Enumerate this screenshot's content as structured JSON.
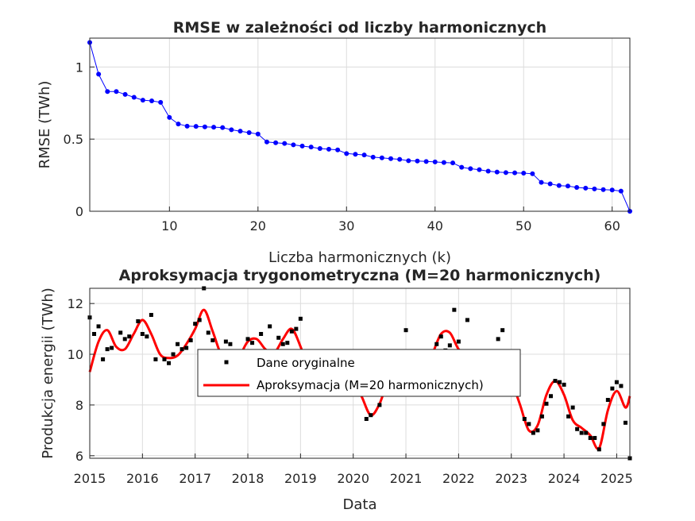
{
  "chart_data": [
    {
      "type": "line",
      "title": "RMSE w zależności od liczby harmonicznych",
      "xlabel": "Liczba harmonicznych (k)",
      "ylabel": "RMSE (TWh)",
      "xlim": [
        1,
        62
      ],
      "ylim": [
        0,
        1.2
      ],
      "xticks": [
        "10",
        "20",
        "30",
        "40",
        "50",
        "60"
      ],
      "yticks": [
        "0",
        "0.5",
        "1"
      ],
      "grid": true,
      "series": [
        {
          "color": "#0000ff",
          "marker": "circle",
          "x": [
            1,
            2,
            3,
            4,
            5,
            6,
            7,
            8,
            9,
            10,
            11,
            12,
            13,
            14,
            15,
            16,
            17,
            18,
            19,
            20,
            21,
            22,
            23,
            24,
            25,
            26,
            27,
            28,
            29,
            30,
            31,
            32,
            33,
            34,
            35,
            36,
            37,
            38,
            39,
            40,
            41,
            42,
            43,
            44,
            45,
            46,
            47,
            48,
            49,
            50,
            51,
            52,
            53,
            54,
            55,
            56,
            57,
            58,
            59,
            60,
            61,
            62
          ],
          "y": [
            1.17,
            0.95,
            0.83,
            0.83,
            0.81,
            0.79,
            0.77,
            0.765,
            0.755,
            0.65,
            0.605,
            0.59,
            0.588,
            0.585,
            0.583,
            0.58,
            0.565,
            0.555,
            0.545,
            0.535,
            0.48,
            0.475,
            0.47,
            0.46,
            0.452,
            0.445,
            0.435,
            0.43,
            0.425,
            0.4,
            0.395,
            0.39,
            0.375,
            0.37,
            0.365,
            0.36,
            0.35,
            0.348,
            0.345,
            0.342,
            0.338,
            0.335,
            0.305,
            0.295,
            0.288,
            0.278,
            0.272,
            0.268,
            0.266,
            0.264,
            0.26,
            0.2,
            0.19,
            0.178,
            0.175,
            0.165,
            0.16,
            0.155,
            0.15,
            0.147,
            0.14,
            0
          ]
        }
      ]
    },
    {
      "type": "line",
      "title": "Aproksymacja trygonometryczna (M=20 harmonicznych)",
      "xlabel": "Data",
      "ylabel": "Produkcja energii (TWh)",
      "xlim": [
        "2015-01",
        "2025-04"
      ],
      "ylim": [
        5.9,
        12.6
      ],
      "xticks": [
        "2015",
        "2016",
        "2017",
        "2018",
        "2019",
        "2020",
        "2021",
        "2022",
        "2023",
        "2024",
        "2025"
      ],
      "yticks": [
        "6",
        "8",
        "10",
        "12"
      ],
      "grid": true,
      "legend": {
        "position": "center",
        "entries": [
          "Dane oryginalne",
          "Aproksymacja (M=20 harmonicznych)"
        ]
      },
      "series": [
        {
          "name": "Dane oryginalne",
          "kind": "scatter",
          "color": "#000000",
          "marker": "square",
          "points": [
            [
              "2015-01",
              11.45
            ],
            [
              "2015-02",
              10.8
            ],
            [
              "2015-03",
              11.1
            ],
            [
              "2015-04",
              9.8
            ],
            [
              "2015-05",
              10.2
            ],
            [
              "2015-06",
              10.25
            ],
            [
              "2015-08",
              10.85
            ],
            [
              "2015-09",
              10.6
            ],
            [
              "2015-10",
              10.7
            ],
            [
              "2015-12",
              11.3
            ],
            [
              "2016-01",
              10.8
            ],
            [
              "2016-02",
              10.7
            ],
            [
              "2016-03",
              11.55
            ],
            [
              "2016-04",
              9.8
            ],
            [
              "2016-06",
              9.8
            ],
            [
              "2016-07",
              9.65
            ],
            [
              "2016-08",
              10.0
            ],
            [
              "2016-09",
              10.4
            ],
            [
              "2016-10",
              10.2
            ],
            [
              "2016-11",
              10.25
            ],
            [
              "2016-12",
              10.55
            ],
            [
              "2017-01",
              11.2
            ],
            [
              "2017-02",
              11.35
            ],
            [
              "2017-03",
              12.6
            ],
            [
              "2017-04",
              10.85
            ],
            [
              "2017-05",
              10.55
            ],
            [
              "2017-08",
              10.5
            ],
            [
              "2017-09",
              10.4
            ],
            [
              "2018-01",
              10.6
            ],
            [
              "2018-02",
              10.45
            ],
            [
              "2018-04",
              10.8
            ],
            [
              "2018-06",
              11.1
            ],
            [
              "2018-08",
              10.65
            ],
            [
              "2018-09",
              10.4
            ],
            [
              "2018-10",
              10.45
            ],
            [
              "2018-11",
              10.9
            ],
            [
              "2018-12",
              11.0
            ],
            [
              "2019-01",
              11.4
            ],
            [
              "2020-04",
              7.45
            ],
            [
              "2020-05",
              7.6
            ],
            [
              "2020-07",
              8.0
            ],
            [
              "2021-01",
              10.95
            ],
            [
              "2021-08",
              10.4
            ],
            [
              "2021-09",
              10.7
            ],
            [
              "2021-10",
              10.15
            ],
            [
              "2021-11",
              10.35
            ],
            [
              "2021-12",
              11.75
            ],
            [
              "2022-01",
              10.5
            ],
            [
              "2022-03",
              11.35
            ],
            [
              "2022-10",
              10.6
            ],
            [
              "2022-11",
              10.95
            ],
            [
              "2023-04",
              7.45
            ],
            [
              "2023-05",
              7.25
            ],
            [
              "2023-06",
              6.9
            ],
            [
              "2023-07",
              7.0
            ],
            [
              "2023-08",
              7.55
            ],
            [
              "2023-09",
              8.05
            ],
            [
              "2023-10",
              8.35
            ],
            [
              "2023-11",
              8.95
            ],
            [
              "2023-12",
              8.9
            ],
            [
              "2024-01",
              8.8
            ],
            [
              "2024-02",
              7.55
            ],
            [
              "2024-03",
              7.9
            ],
            [
              "2024-04",
              7.05
            ],
            [
              "2024-05",
              6.9
            ],
            [
              "2024-06",
              6.9
            ],
            [
              "2024-07",
              6.7
            ],
            [
              "2024-08",
              6.7
            ],
            [
              "2024-09",
              6.25
            ],
            [
              "2024-10",
              7.25
            ],
            [
              "2024-11",
              8.2
            ],
            [
              "2024-12",
              8.65
            ],
            [
              "2025-01",
              8.9
            ],
            [
              "2025-02",
              8.75
            ],
            [
              "2025-03",
              7.3
            ],
            [
              "2025-04",
              5.9
            ]
          ]
        },
        {
          "name": "Aproksymacja (M=20 harmonicznych)",
          "kind": "line",
          "color": "#ff0000",
          "points": [
            [
              "2015-01",
              9.3
            ],
            [
              "2015-03",
              10.5
            ],
            [
              "2015-05",
              10.95
            ],
            [
              "2015-07",
              10.3
            ],
            [
              "2015-09",
              10.2
            ],
            [
              "2015-11",
              10.8
            ],
            [
              "2016-01",
              11.35
            ],
            [
              "2016-03",
              10.8
            ],
            [
              "2016-05",
              10.0
            ],
            [
              "2016-07",
              9.85
            ],
            [
              "2016-09",
              9.95
            ],
            [
              "2016-11",
              10.4
            ],
            [
              "2017-01",
              11.0
            ],
            [
              "2017-03",
              11.75
            ],
            [
              "2017-05",
              10.9
            ],
            [
              "2017-07",
              9.95
            ],
            [
              "2017-09",
              9.65
            ],
            [
              "2017-11",
              9.9
            ],
            [
              "2018-01",
              10.5
            ],
            [
              "2018-03",
              10.6
            ],
            [
              "2018-05",
              10.2
            ],
            [
              "2018-07",
              10.05
            ],
            [
              "2018-09",
              10.6
            ],
            [
              "2018-11",
              11.0
            ],
            [
              "2019-01",
              10.3
            ],
            [
              "2019-03",
              9.3
            ],
            [
              "2019-05",
              9.0
            ],
            [
              "2019-07",
              9.1
            ],
            [
              "2019-09",
              9.3
            ],
            [
              "2019-11",
              9.4
            ],
            [
              "2020-01",
              9.0
            ],
            [
              "2020-03",
              8.3
            ],
            [
              "2020-05",
              7.6
            ],
            [
              "2020-07",
              8.05
            ],
            [
              "2020-09",
              9.0
            ],
            [
              "2020-11",
              9.4
            ],
            [
              "2021-01",
              9.6
            ],
            [
              "2021-03",
              9.4
            ],
            [
              "2021-05",
              9.3
            ],
            [
              "2021-07",
              10.0
            ],
            [
              "2021-09",
              10.8
            ],
            [
              "2021-11",
              10.85
            ],
            [
              "2022-01",
              10.2
            ],
            [
              "2022-03",
              10.0
            ],
            [
              "2022-05",
              9.6
            ],
            [
              "2022-07",
              9.7
            ],
            [
              "2022-09",
              9.9
            ],
            [
              "2022-11",
              9.9
            ],
            [
              "2023-01",
              9.0
            ],
            [
              "2023-03",
              8.0
            ],
            [
              "2023-05",
              7.0
            ],
            [
              "2023-07",
              7.2
            ],
            [
              "2023-09",
              8.4
            ],
            [
              "2023-11",
              8.95
            ],
            [
              "2024-01",
              8.4
            ],
            [
              "2024-03",
              7.4
            ],
            [
              "2024-05",
              7.1
            ],
            [
              "2024-07",
              6.8
            ],
            [
              "2024-09",
              6.3
            ],
            [
              "2024-11",
              7.8
            ],
            [
              "2025-01",
              8.55
            ],
            [
              "2025-03",
              7.9
            ],
            [
              "2025-04",
              8.35
            ]
          ]
        }
      ]
    }
  ]
}
